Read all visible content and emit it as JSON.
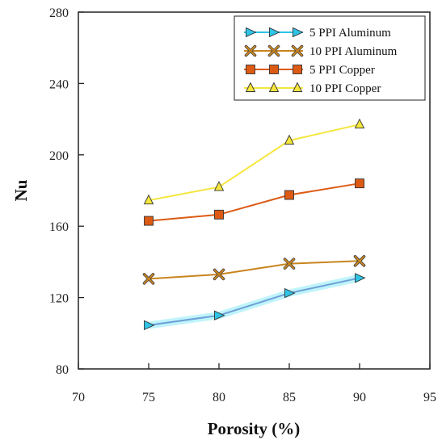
{
  "chart_data": {
    "type": "line",
    "title": "",
    "xlabel": "Porosity (%)",
    "ylabel": "Nu",
    "xlim": [
      70,
      95
    ],
    "ylim": [
      80,
      280
    ],
    "x_ticks": [
      "70",
      "75",
      "80",
      "85",
      "90",
      "95"
    ],
    "y_ticks": [
      "80",
      "120",
      "160",
      "200",
      "240",
      "280"
    ],
    "grid": false,
    "legend_position": "top-right",
    "x": [
      75,
      80,
      85,
      90
    ],
    "series": [
      {
        "name": "5 PPI Aluminum",
        "values": [
          104.5,
          110,
          122.5,
          131
        ],
        "color": "#2ec4e6",
        "marker": "triangle-right"
      },
      {
        "name": "10 PPI Aluminum",
        "values": [
          130.5,
          133,
          139,
          140.5
        ],
        "color": "#c8841e",
        "marker": "x-box"
      },
      {
        "name": "5 PPI Copper",
        "values": [
          163,
          166.5,
          177.5,
          184
        ],
        "color": "#dc5a14",
        "marker": "square"
      },
      {
        "name": "10 PPI Copper",
        "values": [
          174.5,
          182,
          208,
          217
        ],
        "color": "#f5e63c",
        "marker": "triangle-up"
      }
    ]
  }
}
